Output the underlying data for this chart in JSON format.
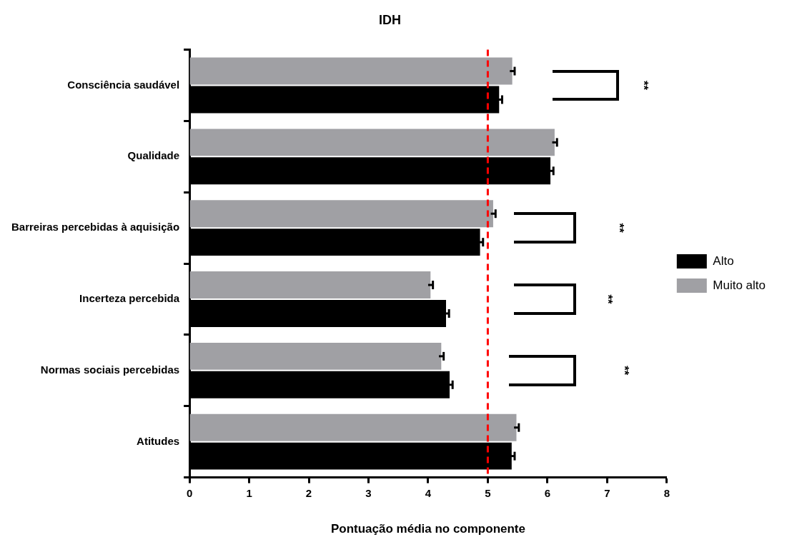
{
  "chart_data": {
    "type": "bar",
    "orientation": "horizontal",
    "title": "IDH",
    "xlabel": "Pontuação média no componente",
    "categories": [
      "Consciência saudável",
      "Qualidade",
      "Barreiras percebidas à aquisição",
      "Incerteza percebida",
      "Normas sociais percebidas",
      "Atitudes"
    ],
    "series": [
      {
        "name": "Alto",
        "color": "#000000",
        "values": [
          5.19,
          6.05,
          4.87,
          4.3,
          4.36,
          5.4
        ],
        "errors": [
          0.05,
          0.05,
          0.05,
          0.05,
          0.05,
          0.05
        ]
      },
      {
        "name": "Muito alto",
        "color": "#a0a0a4",
        "values": [
          5.41,
          6.12,
          5.09,
          4.04,
          4.22,
          5.48
        ],
        "errors": [
          0.04,
          0.04,
          0.04,
          0.04,
          0.04,
          0.04
        ]
      }
    ],
    "xlim": [
      0,
      8
    ],
    "xticks": [
      0,
      1,
      2,
      3,
      4,
      5,
      6,
      7,
      8
    ],
    "grid": false,
    "legend": "right",
    "ref_lines": [
      {
        "axis": "x",
        "value": 5,
        "color": "#ff0000",
        "line_style": "dashed"
      }
    ],
    "annotations": [
      "**",
      "**",
      "**",
      "**"
    ]
  }
}
